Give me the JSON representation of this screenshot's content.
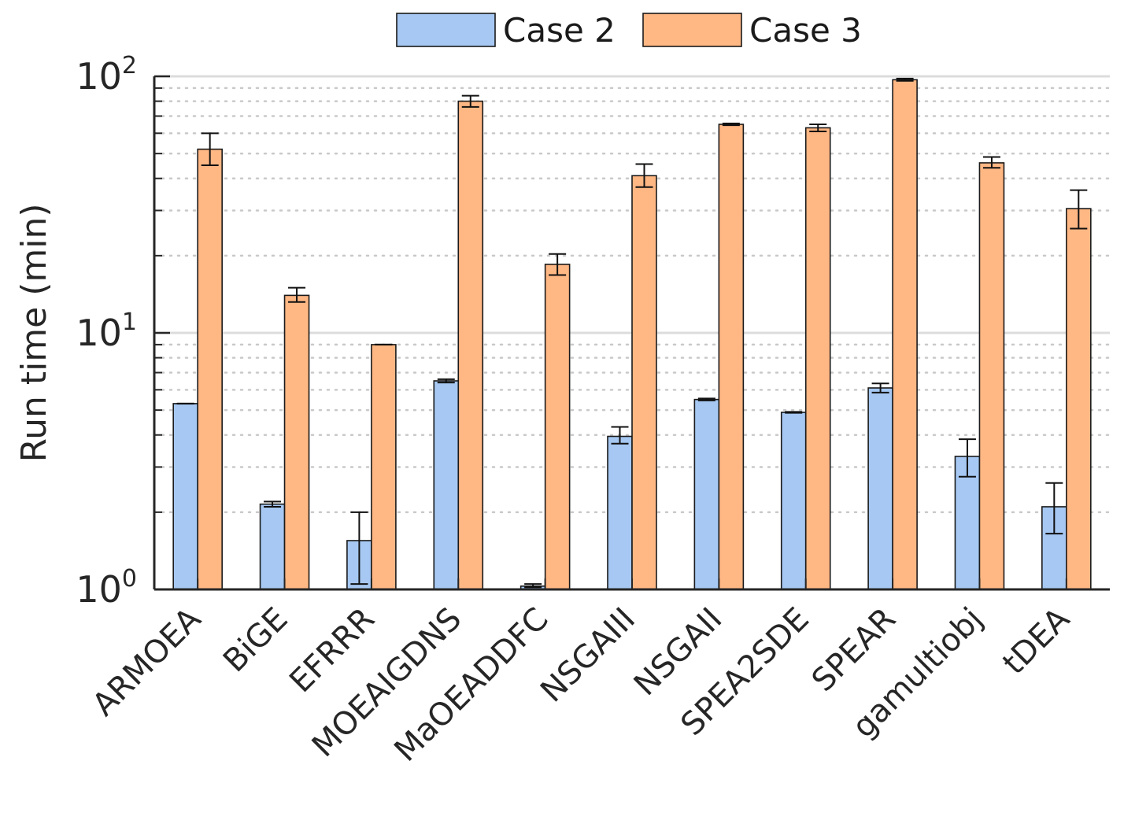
{
  "chart_data": {
    "type": "bar",
    "title": "",
    "xlabel": "",
    "ylabel": "Run time (min)",
    "yscale": "log",
    "ylim": [
      1,
      100
    ],
    "yticks": [
      {
        "value": 1,
        "base": "10",
        "exp": "0"
      },
      {
        "value": 10,
        "base": "10",
        "exp": "1"
      },
      {
        "value": 100,
        "base": "10",
        "exp": "2"
      }
    ],
    "grid": true,
    "legend": "top",
    "categories": [
      "ARMOEA",
      "BiGE",
      "EFRRR",
      "MOEAIGDNS",
      "MaOEADDFC",
      "NSGAIII",
      "NSGAII",
      "SPEA2SDE",
      "SPEAR",
      "gamultiobj",
      "tDEA"
    ],
    "series": [
      {
        "name": "Case 2",
        "color": "#a6c8f2",
        "values": [
          5.3,
          2.15,
          1.55,
          6.5,
          1.03,
          3.95,
          5.5,
          4.9,
          6.1,
          3.3,
          2.1
        ],
        "err_low": [
          5.3,
          2.1,
          1.05,
          6.4,
          1.02,
          3.7,
          5.45,
          4.88,
          5.85,
          2.75,
          1.65
        ],
        "err_high": [
          5.3,
          2.2,
          2.0,
          6.6,
          1.05,
          4.3,
          5.55,
          4.92,
          6.35,
          3.85,
          2.6
        ]
      },
      {
        "name": "Case 3",
        "color": "#ffb784",
        "values": [
          52,
          14,
          9,
          80,
          18.5,
          41,
          65,
          63,
          97,
          46,
          30.5
        ],
        "err_low": [
          45,
          13.2,
          9,
          76,
          16.8,
          37,
          64.5,
          61,
          96,
          44,
          25.5
        ],
        "err_high": [
          60,
          15,
          9,
          84,
          20.3,
          45.5,
          65.5,
          65,
          98,
          48.5,
          36
        ]
      }
    ]
  }
}
